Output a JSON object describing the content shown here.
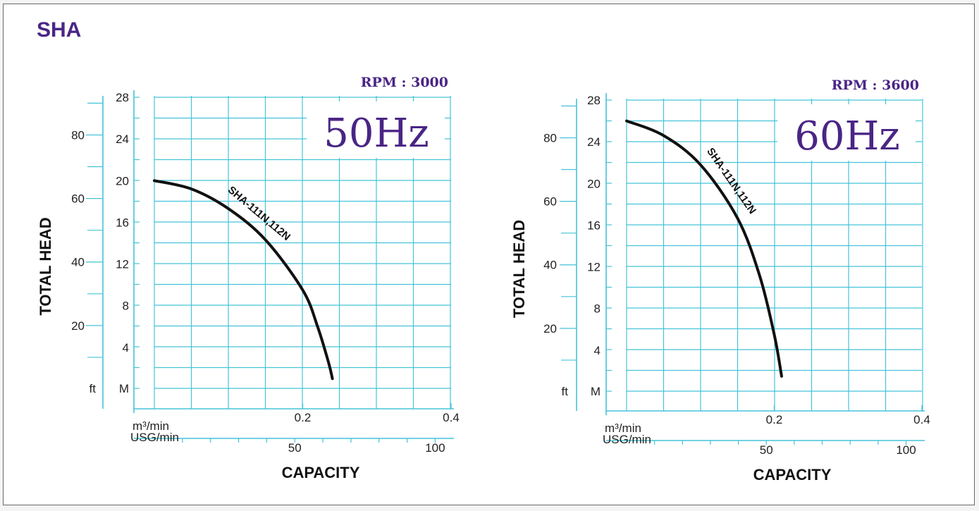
{
  "page_title": "SHA",
  "colors": {
    "grid": "#45c3d8",
    "accent": "#4a2585",
    "curve": "#111111"
  },
  "chart_data": [
    {
      "type": "line",
      "frequency_label": "50Hz",
      "rpm_label": "RPM : 3000",
      "ylabel": "TOTAL HEAD",
      "xlabel": "CAPACITY",
      "y_m_ticks": [
        "28",
        "24",
        "20",
        "16",
        "12",
        "8",
        "4"
      ],
      "y_m_unit": "M",
      "y_ft_ticks": [
        "80",
        "60",
        "40",
        "20"
      ],
      "y_ft_unit": "ft",
      "x_m3_unit": "m³/min",
      "x_m3_ticks": [
        "0.2",
        "0.4"
      ],
      "x_usg_unit": "USG/min",
      "x_usg_ticks": [
        "50",
        "100"
      ],
      "ylim": [
        0,
        28
      ],
      "xlim": [
        0,
        0.4
      ],
      "series": [
        {
          "name": "SHA-111N,112N",
          "x": [
            0.0,
            0.05,
            0.1,
            0.15,
            0.2,
            0.22,
            0.235,
            0.24
          ],
          "y": [
            20.0,
            19.2,
            17.3,
            14.3,
            9.5,
            6.0,
            2.5,
            1.0
          ]
        }
      ]
    },
    {
      "type": "line",
      "frequency_label": "60Hz",
      "rpm_label": "RPM : 3600",
      "ylabel": "TOTAL HEAD",
      "xlabel": "CAPACITY",
      "y_m_ticks": [
        "28",
        "24",
        "20",
        "16",
        "12",
        "8",
        "4"
      ],
      "y_m_unit": "M",
      "y_ft_ticks": [
        "80",
        "60",
        "40",
        "20"
      ],
      "y_ft_unit": "ft",
      "x_m3_unit": "m³/min",
      "x_m3_ticks": [
        "0.2",
        "0.4"
      ],
      "x_usg_unit": "USG/min",
      "x_usg_ticks": [
        "50",
        "100"
      ],
      "ylim": [
        0,
        28
      ],
      "xlim": [
        0,
        0.4
      ],
      "series": [
        {
          "name": "SHA-111N,112N",
          "x": [
            0.0,
            0.05,
            0.1,
            0.15,
            0.18,
            0.2,
            0.21
          ],
          "y": [
            26.0,
            24.6,
            21.8,
            16.7,
            11.2,
            5.5,
            1.5
          ]
        }
      ]
    }
  ]
}
